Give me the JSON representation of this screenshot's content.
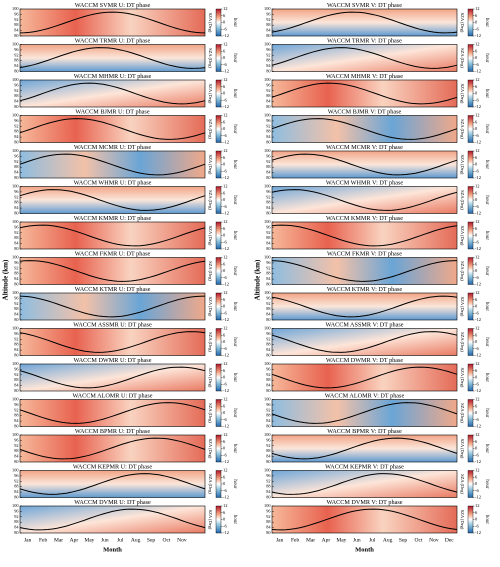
{
  "figure": {
    "y_label": "Altitude (km)",
    "x_label": "Month",
    "colorbar_label": "hour",
    "sza_label": "SZA (Deg)",
    "altitude_ticks": [
      100,
      96,
      92,
      88,
      84,
      80
    ],
    "colorbar_ticks": [
      12,
      6,
      0,
      -6,
      -12
    ],
    "columns": [
      {
        "months": [
          "Jan",
          "Feb",
          "Mar",
          "Apr",
          "May",
          "Jun",
          "Jul",
          "Aug",
          "Sep",
          "Oct",
          "Nov"
        ],
        "panels": [
          "WACCM SVMR U: DT phase",
          "WACCM TRMR U: DT phase",
          "WACCM MHMR U: DT phase",
          "WACCM BJMR U: DT phase",
          "WACCM MCMR U: DT phase",
          "WACCM WHMR U: DT phase",
          "WACCM KMMR U: DT phase",
          "WACCM FKMR U: DT phase",
          "WACCM KTMR U: DT phase",
          "WACCM ASSMR U: DT phase",
          "WACCM DWMR U: DT phase",
          "WACCM ALOMR U: DT phase",
          "WACCM BPMR U: DT phase",
          "WACCM KEPMR U: DT phase",
          "WACCM DVMR U: DT phase"
        ]
      },
      {
        "months": [
          "Jan",
          "Feb",
          "Mar",
          "Apr",
          "May",
          "Jun",
          "Jul",
          "Aug",
          "Sep",
          "Oct",
          "Nov",
          "Dec"
        ],
        "panels": [
          "WACCM SVMR V: DT phase",
          "WACCM TRMR V: DT phase",
          "WACCM MHMR V: DT phase",
          "WACCM BJMR V: DT phase",
          "WACCM MCMR V: DT phase",
          "WACCM WHMR V: DT phase",
          "WACCM KMMR V: DT phase",
          "WACCM FKMR V: DT phase",
          "WACCM KTMR V: DT phase",
          "WACCM ASSMR V: DT phase",
          "WACCM DWMR V: DT phase",
          "WACCM ALOMR V: DT phase",
          "WACCM BPMR V: DT phase",
          "WACCM KEPMR V: DT phase",
          "WACCM DVMR V: DT phase"
        ]
      }
    ]
  }
}
